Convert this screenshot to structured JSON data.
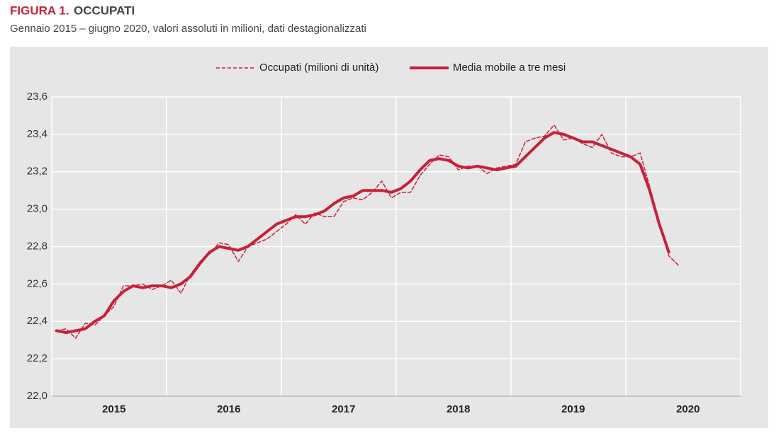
{
  "chart_data": {
    "type": "line",
    "title_label": "FIGURA 1.",
    "title": "OCCUPATI",
    "subtitle": "Gennaio 2015 – giugno 2020, valori assoluti in milioni, dati destagionalizzati",
    "categories": [
      null,
      null,
      null,
      null,
      null,
      null,
      "2015",
      null,
      null,
      null,
      null,
      null,
      null,
      null,
      null,
      null,
      null,
      null,
      "2016",
      null,
      null,
      null,
      null,
      null,
      null,
      null,
      null,
      null,
      null,
      null,
      "2017",
      null,
      null,
      null,
      null,
      null,
      null,
      null,
      null,
      null,
      null,
      null,
      "2018",
      null,
      null,
      null,
      null,
      null,
      null,
      null,
      null,
      null,
      null,
      null,
      "2019",
      null,
      null,
      null,
      null,
      null,
      null,
      null,
      null,
      null,
      null,
      null,
      "2020",
      null,
      null,
      null,
      null,
      null
    ],
    "series": [
      {
        "name": "Occupati (milioni di unità)",
        "color": "#c8203a",
        "style": "dashed",
        "values": [
          22.35,
          22.36,
          22.31,
          22.39,
          22.38,
          22.43,
          22.48,
          22.59,
          22.59,
          22.6,
          22.57,
          22.59,
          22.62,
          22.55,
          22.65,
          22.72,
          22.76,
          22.82,
          22.81,
          22.72,
          22.8,
          22.82,
          22.84,
          22.88,
          22.92,
          22.97,
          22.92,
          22.98,
          22.96,
          22.96,
          23.04,
          23.06,
          23.05,
          23.09,
          23.15,
          23.06,
          23.09,
          23.09,
          23.18,
          23.24,
          23.29,
          23.28,
          23.21,
          23.23,
          23.23,
          23.19,
          23.22,
          23.23,
          23.24,
          23.36,
          23.38,
          23.39,
          23.45,
          23.37,
          23.38,
          23.35,
          23.33,
          23.4,
          23.3,
          23.28,
          23.28,
          23.3,
          23.12,
          22.92,
          22.75,
          22.7,
          null,
          null,
          null,
          null,
          null,
          null
        ]
      },
      {
        "name": "Media mobile a tre mesi",
        "color": "#c8203a",
        "style": "solid",
        "values": [
          22.35,
          22.34,
          22.35,
          22.36,
          22.4,
          22.43,
          22.51,
          22.56,
          22.59,
          22.58,
          22.59,
          22.59,
          22.58,
          22.6,
          22.64,
          22.71,
          22.77,
          22.8,
          22.79,
          22.78,
          22.8,
          22.84,
          22.88,
          22.92,
          22.94,
          22.96,
          22.96,
          22.97,
          22.99,
          23.03,
          23.06,
          23.07,
          23.1,
          23.1,
          23.1,
          23.09,
          23.11,
          23.15,
          23.21,
          23.26,
          23.27,
          23.26,
          23.23,
          23.22,
          23.23,
          23.22,
          23.21,
          23.22,
          23.23,
          23.28,
          23.33,
          23.38,
          23.41,
          23.4,
          23.38,
          23.36,
          23.36,
          23.34,
          23.32,
          23.3,
          23.28,
          23.24,
          23.1,
          22.92,
          22.77,
          null,
          null,
          null,
          null,
          null,
          null,
          null
        ]
      }
    ],
    "ylim": [
      22.0,
      23.6
    ],
    "yticks": [
      {
        "value": 22.0,
        "label": "22,0"
      },
      {
        "value": 22.2,
        "label": "22,2"
      },
      {
        "value": 22.4,
        "label": "22,4"
      },
      {
        "value": 22.6,
        "label": "22,6"
      },
      {
        "value": 22.8,
        "label": "22,8"
      },
      {
        "value": 23.0,
        "label": "23,0"
      },
      {
        "value": 23.2,
        "label": "23,2"
      },
      {
        "value": 23.4,
        "label": "23,4"
      },
      {
        "value": 23.6,
        "label": "23,6"
      }
    ],
    "grid": true,
    "legend": "top"
  }
}
